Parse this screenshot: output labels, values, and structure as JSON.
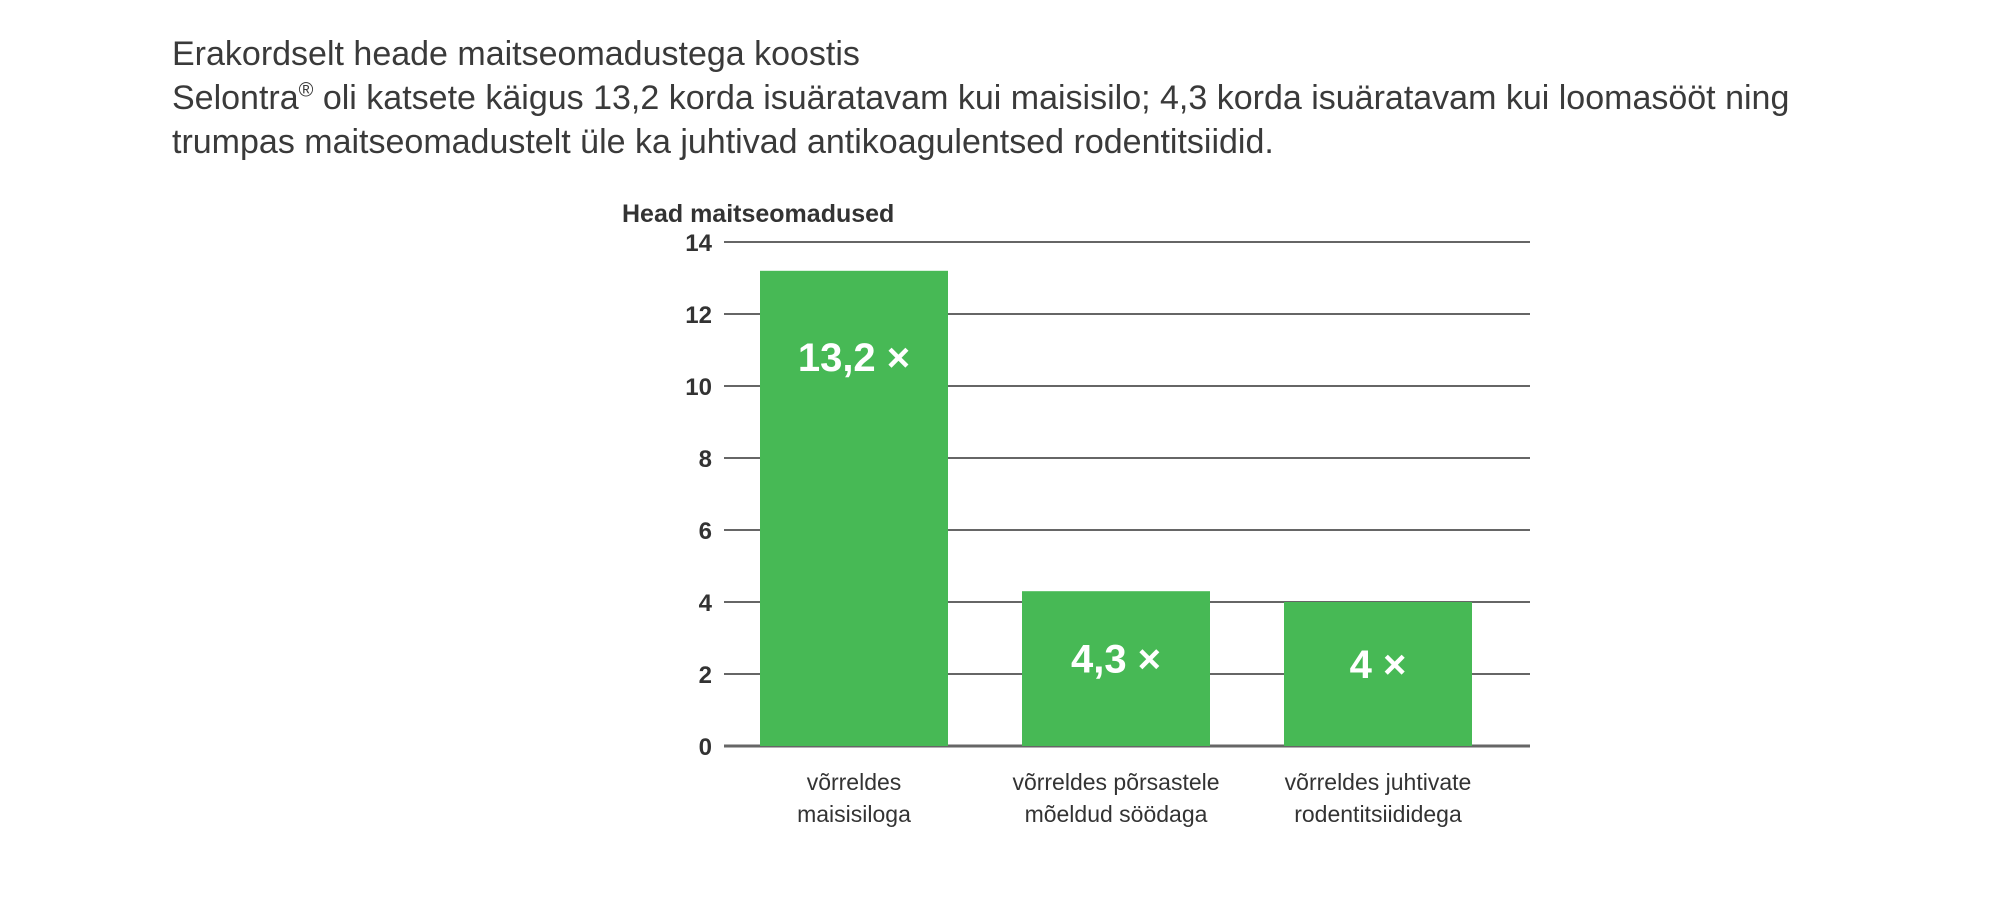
{
  "intro": {
    "heading": "Erakordselt heade maitseomadustega koostis",
    "brand": "Selontra",
    "brand_mark": "®",
    "body": " oli katsete käigus 13,2 korda isuäratavam kui maisisilo; 4,3 korda isuäratavam kui loomasööt ning trumpas maitseomadustelt üle ka juhtivad antikoagulentsed rodentitsiidid."
  },
  "chart_data": {
    "type": "bar",
    "title": "",
    "ylabel": "Head maitseomadused",
    "xlabel": "",
    "ylim": [
      0,
      14
    ],
    "yticks": [
      0,
      2,
      4,
      6,
      8,
      10,
      12,
      14
    ],
    "grid": true,
    "legend": "none",
    "bar_color": "#47b955",
    "categories": [
      [
        "võrreldes",
        "maisisiloga"
      ],
      [
        "võrreldes põrsastele",
        "mõeldud söödaga"
      ],
      [
        "võrreldes juhtivate",
        "rodentitsiididega"
      ]
    ],
    "values": [
      13.2,
      4.3,
      4
    ],
    "data_labels": [
      "13,2 ×",
      "4,3 ×",
      "4 ×"
    ]
  }
}
